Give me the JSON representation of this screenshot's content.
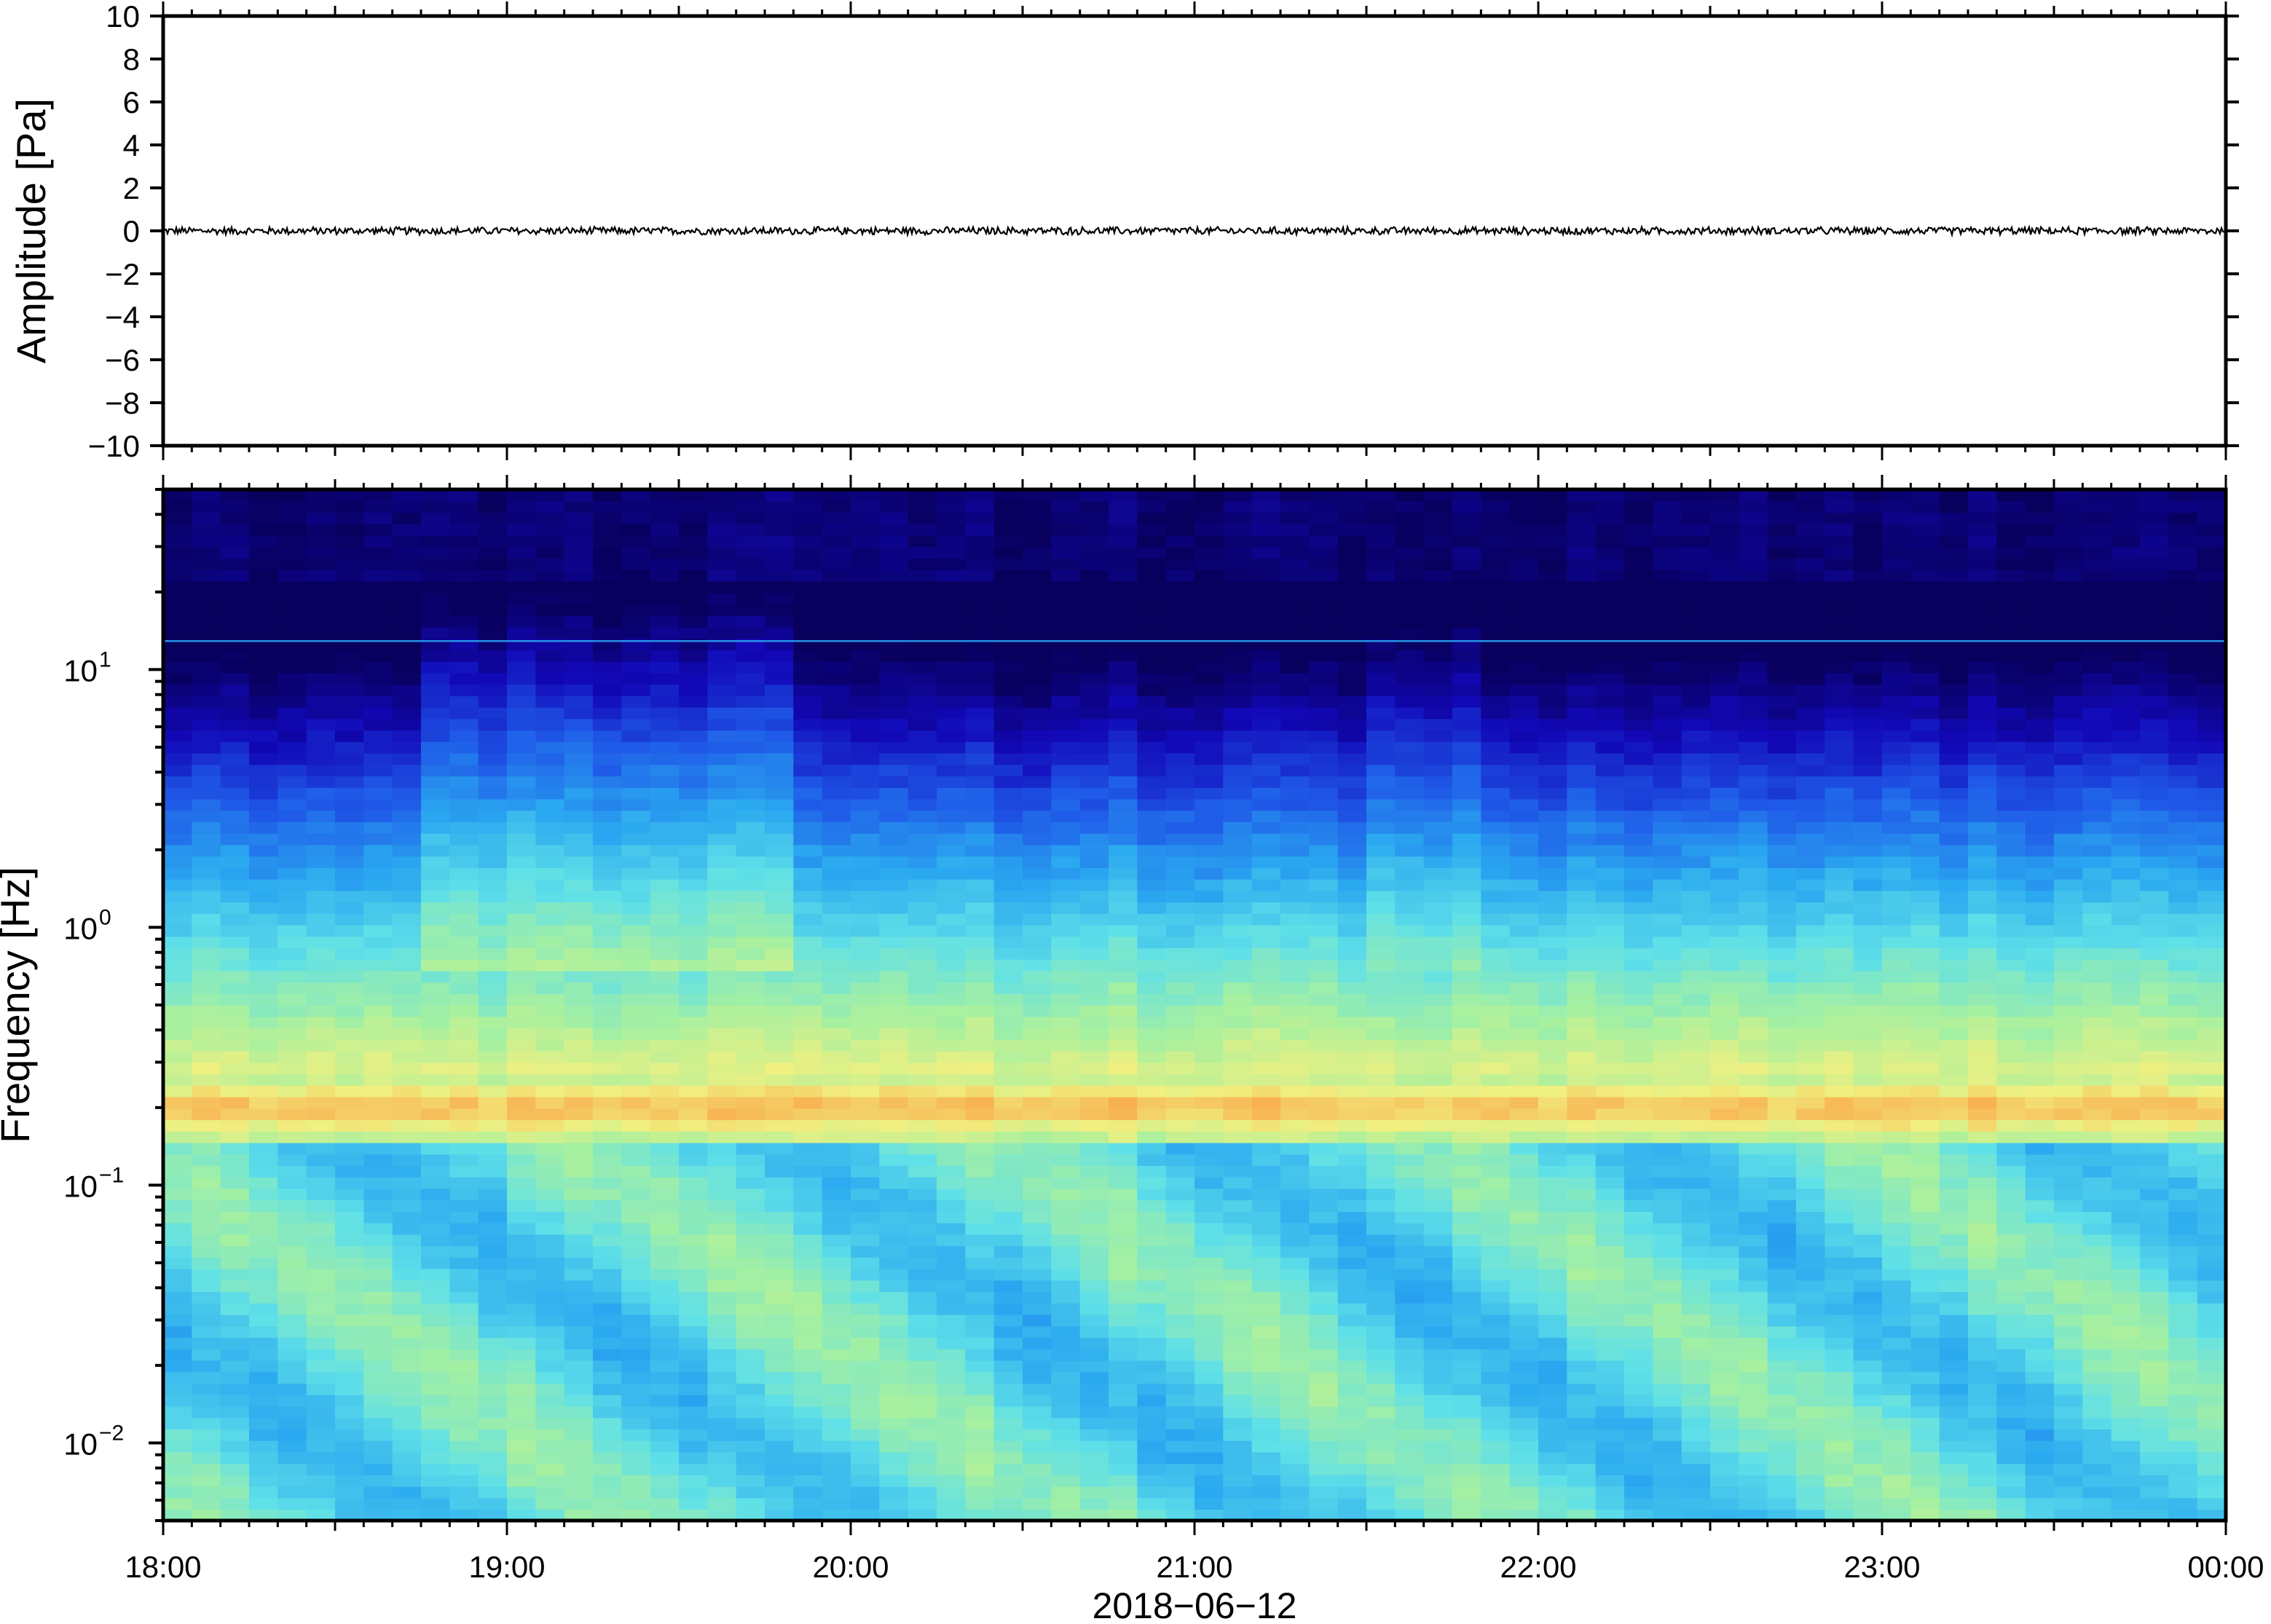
{
  "chart_data": [
    {
      "type": "line",
      "panel": "waveform",
      "ylabel": "Amplitude [Pa]",
      "ylim": [
        -10,
        10
      ],
      "yticks": [
        10,
        8,
        6,
        4,
        2,
        0,
        -2,
        -4,
        -6,
        -8,
        -10
      ],
      "ytick_labels": [
        "10",
        "8",
        "6",
        "4",
        "2",
        "0",
        "−2",
        "−4",
        "−6",
        "−8",
        "−10"
      ],
      "series": [
        {
          "description_value": "near-zero noise trace, amplitude about ±0.2 Pa",
          "baseline": 0,
          "amplitude_approx": 0.2
        }
      ]
    },
    {
      "type": "heatmap",
      "panel": "spectrogram",
      "ylabel": "Frequency [Hz]",
      "yscale": "log",
      "ylim": [
        0.005,
        50
      ],
      "yticks": [
        {
          "base": "10",
          "exp": "1"
        },
        {
          "base": "10",
          "exp": "0"
        },
        {
          "base": "10",
          "exp": "−1"
        },
        {
          "base": "10",
          "exp": "−2"
        }
      ],
      "colormap": [
        "#08005c",
        "#1208b8",
        "#1f5ae8",
        "#2aa8f0",
        "#5fe0e8",
        "#a6f0a0",
        "#f0f080",
        "#f8b050",
        "#f07030"
      ],
      "band_peak_hz": 0.19,
      "features": [
        {
          "hz_from": 0.14,
          "hz_to": 0.25,
          "level": 0.85
        },
        {
          "hz_from": 12.8,
          "hz_to": 13.0,
          "level": 0.35
        }
      ]
    }
  ],
  "xaxis": {
    "tick_labels": [
      "18:00",
      "19:00",
      "20:00",
      "21:00",
      "22:00",
      "23:00",
      "00:00"
    ],
    "xlabel": "2018−06−12"
  }
}
